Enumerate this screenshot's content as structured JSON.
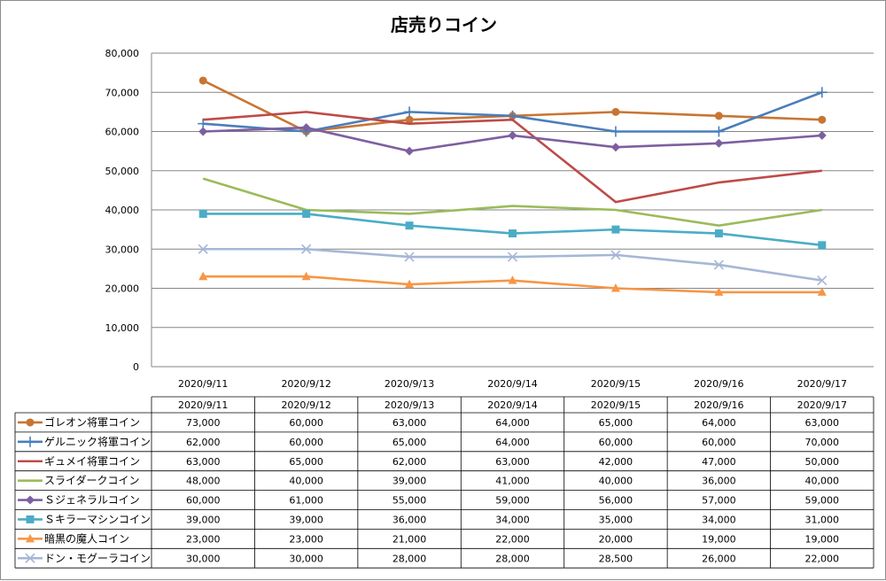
{
  "chart_data": {
    "type": "line",
    "title": "店売りコイン",
    "categories": [
      "2020/9/11",
      "2020/9/12",
      "2020/9/13",
      "2020/9/14",
      "2020/9/15",
      "2020/9/16",
      "2020/9/17"
    ],
    "ylim": [
      0,
      80000
    ],
    "yticks": [
      0,
      10000,
      20000,
      30000,
      40000,
      50000,
      60000,
      70000,
      80000
    ],
    "ytick_labels": [
      "0",
      "10,000",
      "20,000",
      "30,000",
      "40,000",
      "50,000",
      "60,000",
      "70,000",
      "80,000"
    ],
    "grid": true,
    "legend": "data-table",
    "series": [
      {
        "name": "ゴレオン将軍コイン",
        "color": "#c87533",
        "marker": "circle",
        "values": [
          73000,
          60000,
          63000,
          64000,
          65000,
          64000,
          63000
        ],
        "labels": [
          "73,000",
          "60,000",
          "63,000",
          "64,000",
          "65,000",
          "64,000",
          "63,000"
        ]
      },
      {
        "name": "ゲルニック将軍コイン",
        "color": "#4a7ebb",
        "marker": "plus",
        "values": [
          62000,
          60000,
          65000,
          64000,
          60000,
          60000,
          70000
        ],
        "labels": [
          "62,000",
          "60,000",
          "65,000",
          "64,000",
          "60,000",
          "60,000",
          "70,000"
        ]
      },
      {
        "name": "ギュメイ将軍コイン",
        "color": "#be4b48",
        "marker": "none",
        "values": [
          63000,
          65000,
          62000,
          63000,
          42000,
          47000,
          50000
        ],
        "labels": [
          "63,000",
          "65,000",
          "62,000",
          "63,000",
          "42,000",
          "47,000",
          "50,000"
        ]
      },
      {
        "name": "スライダークコイン",
        "color": "#9bbb59",
        "marker": "none",
        "values": [
          48000,
          40000,
          39000,
          41000,
          40000,
          36000,
          40000
        ],
        "labels": [
          "48,000",
          "40,000",
          "39,000",
          "41,000",
          "40,000",
          "36,000",
          "40,000"
        ]
      },
      {
        "name": "Ｓジェネラルコイン",
        "color": "#7d5fa0",
        "marker": "diamond",
        "values": [
          60000,
          61000,
          55000,
          59000,
          56000,
          57000,
          59000
        ],
        "labels": [
          "60,000",
          "61,000",
          "55,000",
          "59,000",
          "56,000",
          "57,000",
          "59,000"
        ]
      },
      {
        "name": "Ｓキラーマシンコイン",
        "color": "#4bacc6",
        "marker": "square",
        "values": [
          39000,
          39000,
          36000,
          34000,
          35000,
          34000,
          31000
        ],
        "labels": [
          "39,000",
          "39,000",
          "36,000",
          "34,000",
          "35,000",
          "34,000",
          "31,000"
        ]
      },
      {
        "name": "暗黒の魔人コイン",
        "color": "#f79646",
        "marker": "triangle",
        "values": [
          23000,
          23000,
          21000,
          22000,
          20000,
          19000,
          19000
        ],
        "labels": [
          "23,000",
          "23,000",
          "21,000",
          "22,000",
          "20,000",
          "19,000",
          "19,000"
        ]
      },
      {
        "name": "ドン・モグーラコイン",
        "color": "#a5b7d6",
        "marker": "x",
        "values": [
          30000,
          30000,
          28000,
          28000,
          28500,
          26000,
          22000
        ],
        "labels": [
          "30,000",
          "30,000",
          "28,000",
          "28,000",
          "28,500",
          "26,000",
          "22,000"
        ]
      }
    ]
  }
}
